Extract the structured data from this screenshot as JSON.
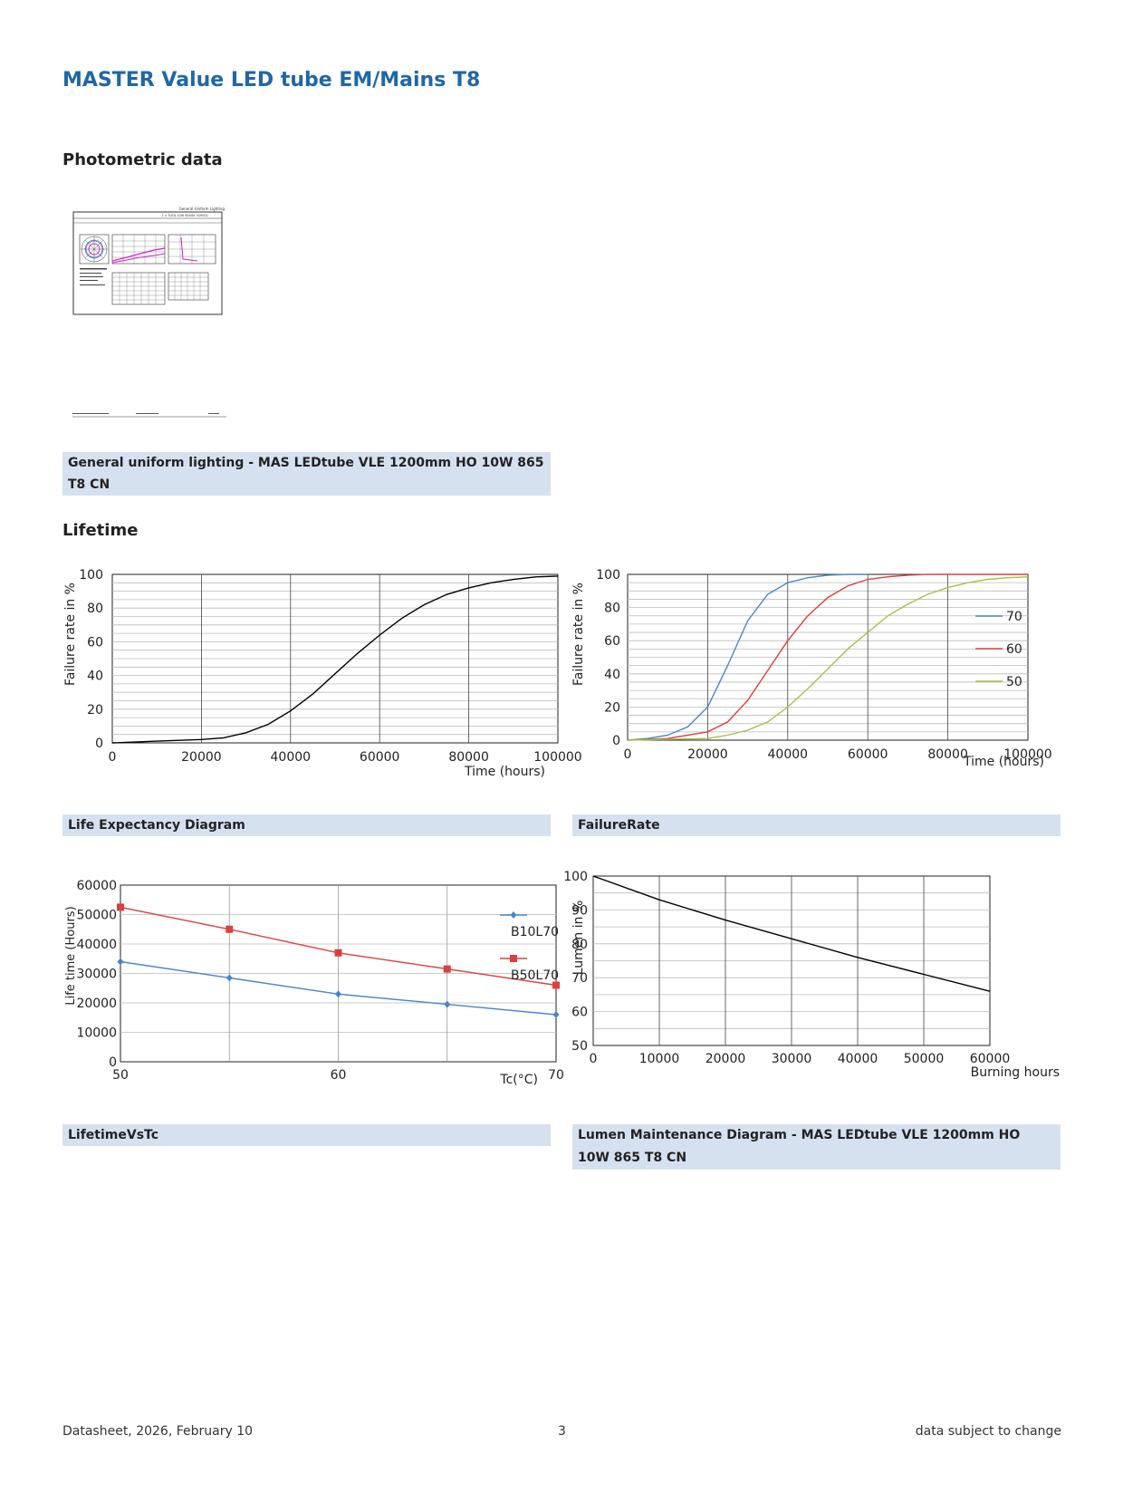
{
  "header": {
    "title": "MASTER Value LED tube EM/Mains T8"
  },
  "sections": {
    "photometric": "Photometric data",
    "lifetime": "Lifetime"
  },
  "photometric_thumb": {
    "top_label": "General Uniform Lighting",
    "product_line": "1 x TLED 10W 6500K 929001",
    "caption": "General uniform lighting - MAS LEDtube VLE 1200mm HO 10W 865 T8 CN"
  },
  "captions": {
    "life_expectancy": "Life Expectancy Diagram",
    "failure_rate": "FailureRate",
    "lifetime_vs_tc": "LifetimeVsTc",
    "lumen_maintenance": "Lumen Maintenance Diagram - MAS LEDtube VLE 1200mm HO 10W 865 T8 CN"
  },
  "colors": {
    "title_blue": "#1f67a7",
    "caption_bg": "#d6e1f0",
    "blue": "#4a86c5",
    "red": "#d9403f",
    "green": "#a9c04a"
  },
  "chart_data": [
    {
      "id": "life_expectancy",
      "type": "line",
      "xlabel": "Time (hours)",
      "ylabel": "Failure rate in %",
      "xlim": [
        0,
        100000
      ],
      "ylim": [
        0,
        100
      ],
      "xticks": [
        "0",
        "20000",
        "40000",
        "60000",
        "80000",
        "100000"
      ],
      "yticks": [
        "0",
        "20",
        "40",
        "60",
        "80",
        "100"
      ],
      "grid": true,
      "series": [
        {
          "color": "#000000",
          "x": [
            0,
            5000,
            10000,
            15000,
            20000,
            25000,
            30000,
            35000,
            40000,
            45000,
            50000,
            55000,
            60000,
            65000,
            70000,
            75000,
            80000,
            85000,
            90000,
            95000,
            100000
          ],
          "y": [
            0,
            0.5,
            1,
            1.5,
            2,
            3,
            6,
            11,
            19,
            29,
            41,
            53,
            64,
            74,
            82,
            88,
            92,
            95,
            97,
            98.5,
            99
          ]
        }
      ]
    },
    {
      "id": "failure_rate",
      "type": "line",
      "xlabel": "Time (hours)",
      "ylabel": "Failure rate in %",
      "xlim": [
        0,
        100000
      ],
      "ylim": [
        0,
        100
      ],
      "xticks": [
        "0",
        "20000",
        "40000",
        "60000",
        "80000",
        "100000"
      ],
      "yticks": [
        "0",
        "20",
        "40",
        "60",
        "80",
        "100"
      ],
      "grid": true,
      "legend": "right",
      "series": [
        {
          "name": "70",
          "color": "#4a86c5",
          "x": [
            0,
            5000,
            10000,
            15000,
            20000,
            25000,
            30000,
            35000,
            40000,
            45000,
            50000,
            55000,
            60000
          ],
          "y": [
            0,
            1,
            3,
            8,
            20,
            45,
            72,
            88,
            95,
            98,
            99.5,
            100,
            100
          ]
        },
        {
          "name": "60",
          "color": "#d9403f",
          "x": [
            0,
            10000,
            20000,
            25000,
            30000,
            35000,
            40000,
            45000,
            50000,
            55000,
            60000,
            65000,
            70000,
            75000,
            80000,
            100000
          ],
          "y": [
            0,
            1,
            5,
            11,
            24,
            42,
            60,
            75,
            86,
            93,
            97,
            98.5,
            99.5,
            100,
            100,
            100
          ]
        },
        {
          "name": "50",
          "color": "#a9c04a",
          "x": [
            0,
            10000,
            20000,
            25000,
            30000,
            35000,
            40000,
            45000,
            50000,
            55000,
            60000,
            65000,
            70000,
            75000,
            80000,
            85000,
            90000,
            95000,
            100000
          ],
          "y": [
            0,
            0.5,
            1,
            3,
            6,
            11,
            20,
            31,
            43,
            55,
            65,
            75,
            82,
            88,
            92,
            95,
            97,
            98,
            98.5
          ]
        }
      ]
    },
    {
      "id": "lifetime_vs_tc",
      "type": "line",
      "xlabel": "Tc(°C)",
      "ylabel": "Life time (Hours)",
      "xlim": [
        50,
        70
      ],
      "ylim": [
        0,
        60000
      ],
      "xticks": [
        "50",
        "60",
        "70"
      ],
      "yticks": [
        "0",
        "10000",
        "20000",
        "30000",
        "40000",
        "50000",
        "60000"
      ],
      "grid": true,
      "legend": "right",
      "series": [
        {
          "name": "B10L70",
          "color": "#4a86c5",
          "marker": "diamond",
          "x": [
            50,
            55,
            60,
            65,
            70
          ],
          "y": [
            34000,
            28500,
            23000,
            19500,
            16000
          ]
        },
        {
          "name": "B50L70",
          "color": "#d9403f",
          "marker": "square",
          "x": [
            50,
            55,
            60,
            65,
            70
          ],
          "y": [
            52500,
            45000,
            37000,
            31500,
            26000
          ]
        }
      ]
    },
    {
      "id": "lumen_maintenance",
      "type": "line",
      "xlabel": "Burning hours",
      "ylabel": "Lumen in %",
      "xlim": [
        0,
        60000
      ],
      "ylim": [
        50,
        100
      ],
      "xticks": [
        "0",
        "10000",
        "20000",
        "30000",
        "40000",
        "50000",
        "60000"
      ],
      "yticks": [
        "50",
        "60",
        "70",
        "80",
        "90",
        "100"
      ],
      "grid": true,
      "series": [
        {
          "color": "#000000",
          "x": [
            0,
            10000,
            20000,
            30000,
            40000,
            50000,
            60000
          ],
          "y": [
            100,
            93,
            87,
            81.5,
            76,
            71,
            66
          ]
        }
      ]
    }
  ],
  "footer": {
    "left": "Datasheet, 2026, February 10",
    "center": "3",
    "right": "data subject to change"
  }
}
